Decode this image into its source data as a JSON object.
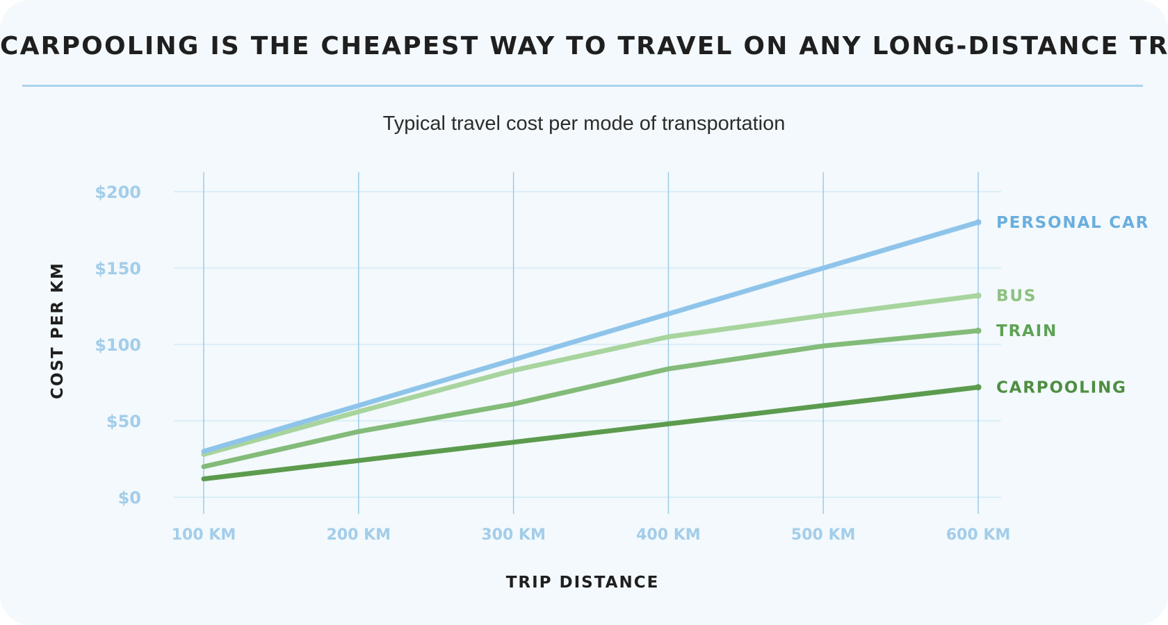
{
  "header": {
    "title": "CARPOOLING IS THE CHEAPEST WAY TO TRAVEL ON ANY LONG-DISTANCE TRIP",
    "subtitle": "Typical travel cost per mode of transportation"
  },
  "colors": {
    "background": "#f3f9fc",
    "title_rule": "#a9d3ef",
    "axis_tick_label": "#a3cdea",
    "grid": "#dbeef8",
    "vertical_grid": "#9ccbea",
    "personal_car": "#8fc4ea",
    "personal_car_label": "#6aaedd",
    "bus": "#a8d49e",
    "bus_label": "#8cc07f",
    "train": "#83bb79",
    "train_label": "#5fa255",
    "carpooling": "#5c9b4e",
    "carpooling_label": "#4e8e40"
  },
  "chart_data": {
    "type": "line",
    "title": "CARPOOLING IS THE CHEAPEST WAY TO TRAVEL ON ANY LONG-DISTANCE TRIP",
    "subtitle": "Typical travel cost per mode of transportation",
    "xlabel": "TRIP DISTANCE",
    "ylabel": "COST PER KM",
    "x": [
      100,
      200,
      300,
      400,
      500,
      600
    ],
    "x_tick_labels": [
      "100 KM",
      "200 KM",
      "300 KM",
      "400 KM",
      "500 KM",
      "600 KM"
    ],
    "y_ticks": [
      0,
      50,
      100,
      150,
      200
    ],
    "y_tick_labels": [
      "$0",
      "$50",
      "$100",
      "$150",
      "$200"
    ],
    "ylim": [
      0,
      200
    ],
    "grid": true,
    "legend": "inline labels at right end of each line",
    "series": [
      {
        "name": "PERSONAL CAR",
        "values": [
          30,
          60,
          90,
          120,
          150,
          180
        ],
        "color_key": "personal_car"
      },
      {
        "name": "BUS",
        "values": [
          28,
          56,
          83,
          105,
          119,
          132
        ],
        "color_key": "bus"
      },
      {
        "name": "TRAIN",
        "values": [
          20,
          43,
          61,
          84,
          99,
          109
        ],
        "color_key": "train"
      },
      {
        "name": "CARPOOLING",
        "values": [
          12,
          24,
          36,
          48,
          60,
          72
        ],
        "color_key": "carpooling"
      }
    ]
  }
}
